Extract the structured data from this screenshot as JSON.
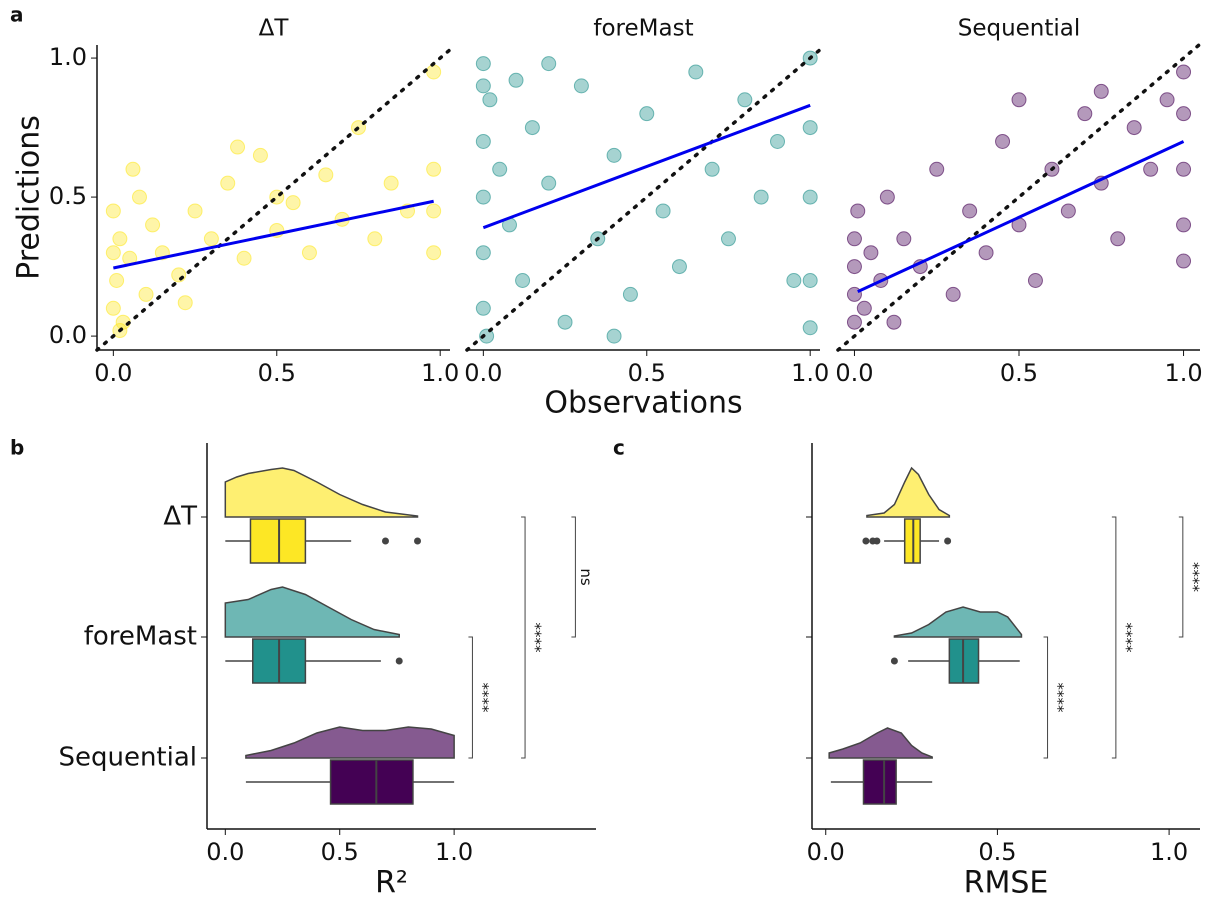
{
  "chart_data": [
    {
      "type": "scatter",
      "panel_label": "a",
      "title": "ΔT",
      "ylabel": "Predictions",
      "color": "#fde725",
      "x": [
        0,
        0,
        0,
        0.01,
        0.02,
        0.03,
        0.05,
        0.08,
        0.1,
        0.12,
        0.15,
        0.2,
        0.25,
        0.3,
        0.35,
        0.4,
        0.45,
        0.5,
        0.55,
        0.6,
        0.65,
        0.7,
        0.75,
        0.8,
        0.85,
        0.9,
        0.98,
        0.98,
        0.98,
        0.98,
        0.06,
        0.22,
        0.5,
        0.38,
        0.02
      ],
      "y": [
        0.3,
        0.1,
        0.45,
        0.2,
        0.35,
        0.05,
        0.28,
        0.5,
        0.15,
        0.4,
        0.3,
        0.22,
        0.45,
        0.35,
        0.55,
        0.28,
        0.65,
        0.38,
        0.48,
        0.3,
        0.58,
        0.42,
        0.75,
        0.35,
        0.55,
        0.45,
        0.3,
        0.6,
        0.95,
        0.45,
        0.6,
        0.12,
        0.5,
        0.68,
        0.02
      ],
      "fit": {
        "x": [
          0,
          0.98
        ],
        "y": [
          0.245,
          0.485
        ]
      },
      "xlim": [
        -0.05,
        1.03
      ],
      "ylim": [
        -0.05,
        1.047
      ],
      "xticks": [
        {
          "value": 0,
          "label": "0.0"
        },
        {
          "value": 0.5,
          "label": "0.5"
        },
        {
          "value": 1,
          "label": "1.0"
        }
      ],
      "yticks": [
        {
          "value": 0,
          "label": "0.0"
        },
        {
          "value": 0.5,
          "label": "0.5"
        },
        {
          "value": 1,
          "label": "1.0"
        }
      ]
    },
    {
      "type": "scatter",
      "title": "foreMast",
      "xlabel": "Observations",
      "color": "#21918c",
      "x": [
        0,
        0,
        0,
        0,
        0,
        0,
        0.01,
        0.02,
        0.05,
        0.08,
        0.1,
        0.12,
        0.15,
        0.2,
        0.25,
        0.3,
        0.35,
        0.4,
        0.45,
        0.5,
        0.55,
        0.6,
        0.65,
        0.7,
        0.75,
        0.8,
        0.85,
        0.9,
        0.95,
        1,
        1,
        1,
        1,
        1,
        0.4,
        0.2
      ],
      "y": [
        0.98,
        0.9,
        0.7,
        0.5,
        0.3,
        0.1,
        0,
        0.85,
        0.6,
        0.4,
        0.92,
        0.2,
        0.75,
        0.55,
        0.05,
        0.9,
        0.35,
        0.65,
        0.15,
        0.8,
        0.45,
        0.25,
        0.95,
        0.6,
        0.35,
        0.85,
        0.5,
        0.7,
        0.2,
        1,
        0.75,
        0.5,
        0.2,
        0.03,
        0,
        0.98
      ],
      "fit": {
        "x": [
          0,
          1
        ],
        "y": [
          0.39,
          0.83
        ]
      },
      "xlim": [
        -0.05,
        1.03
      ],
      "ylim": [
        -0.05,
        1.047
      ],
      "xticks": [
        {
          "value": 0,
          "label": "0.0"
        },
        {
          "value": 0.5,
          "label": "0.5"
        },
        {
          "value": 1,
          "label": "1.0"
        }
      ]
    },
    {
      "type": "scatter",
      "title": "Sequential",
      "color": "#440154",
      "x": [
        0,
        0,
        0,
        0,
        0.01,
        0.03,
        0.05,
        0.08,
        0.1,
        0.12,
        0.15,
        0.2,
        0.25,
        0.3,
        0.35,
        0.4,
        0.45,
        0.5,
        0.55,
        0.6,
        0.65,
        0.7,
        0.75,
        0.8,
        0.85,
        0.9,
        0.95,
        1,
        1,
        1,
        1,
        1,
        0.5,
        0.75
      ],
      "y": [
        0.05,
        0.15,
        0.25,
        0.35,
        0.45,
        0.1,
        0.3,
        0.2,
        0.5,
        0.05,
        0.35,
        0.25,
        0.6,
        0.15,
        0.45,
        0.3,
        0.7,
        0.4,
        0.2,
        0.6,
        0.45,
        0.8,
        0.55,
        0.35,
        0.75,
        0.6,
        0.85,
        0.95,
        0.8,
        0.6,
        0.4,
        0.27,
        0.85,
        0.88
      ],
      "fit": {
        "x": [
          0.01,
          1
        ],
        "y": [
          0.16,
          0.7
        ]
      },
      "xlim": [
        -0.05,
        1.05
      ],
      "ylim": [
        -0.05,
        1.047
      ],
      "xticks": [
        {
          "value": 0,
          "label": "0.0"
        },
        {
          "value": 0.5,
          "label": "0.5"
        },
        {
          "value": 1,
          "label": "1.0"
        }
      ]
    },
    {
      "type": "raincloud",
      "panel_label": "b",
      "xlabel": "R²",
      "categories": [
        "ΔT",
        "foreMast",
        "Sequential"
      ],
      "xlim": [
        -0.08,
        1.62
      ],
      "xticks": [
        {
          "value": 0,
          "label": "0.0"
        },
        {
          "value": 0.5,
          "label": "0.5"
        },
        {
          "value": 1,
          "label": "1.0"
        }
      ],
      "series": [
        {
          "color": "#fde725",
          "whisker": [
            0,
            0.55
          ],
          "q1": 0.11,
          "median": 0.235,
          "q3": 0.35,
          "outliers": [
            0.7,
            0.84
          ],
          "density_x": [
            0,
            0.05,
            0.1,
            0.2,
            0.25,
            0.3,
            0.4,
            0.5,
            0.6,
            0.7,
            0.84
          ],
          "density": [
            0.7,
            0.8,
            0.87,
            0.95,
            0.98,
            0.93,
            0.7,
            0.45,
            0.25,
            0.1,
            0.02
          ]
        },
        {
          "color": "#21918c",
          "whisker": [
            0,
            0.68
          ],
          "q1": 0.12,
          "median": 0.235,
          "q3": 0.35,
          "outliers": [
            0.76
          ],
          "density_x": [
            0,
            0.1,
            0.2,
            0.25,
            0.35,
            0.45,
            0.55,
            0.65,
            0.76
          ],
          "density": [
            0.68,
            0.75,
            0.95,
            1,
            0.85,
            0.6,
            0.35,
            0.15,
            0.05
          ]
        },
        {
          "color": "#440154",
          "whisker": [
            0.09,
            1
          ],
          "q1": 0.46,
          "median": 0.66,
          "q3": 0.82,
          "outliers": [],
          "density_x": [
            0.09,
            0.2,
            0.3,
            0.4,
            0.5,
            0.6,
            0.7,
            0.8,
            0.9,
            1
          ],
          "density": [
            0.05,
            0.15,
            0.3,
            0.5,
            0.62,
            0.55,
            0.55,
            0.62,
            0.58,
            0.45
          ]
        }
      ],
      "brackets": [
        {
          "from": 0,
          "to": 1,
          "x": 1.53,
          "label": "ns"
        },
        {
          "from": 0,
          "to": 2,
          "x": 1.31,
          "label": "****"
        },
        {
          "from": 1,
          "to": 2,
          "x": 1.08,
          "label": "****"
        }
      ]
    },
    {
      "type": "raincloud",
      "panel_label": "c",
      "xlabel": "RMSE",
      "xlim": [
        -0.04,
        1.09
      ],
      "xticks": [
        {
          "value": 0,
          "label": "0.0"
        },
        {
          "value": 0.5,
          "label": "0.5"
        },
        {
          "value": 1,
          "label": "1.0"
        }
      ],
      "series": [
        {
          "color": "#fde725",
          "whisker": [
            0.17,
            0.33
          ],
          "q1": 0.23,
          "median": 0.255,
          "q3": 0.275,
          "outliers": [
            0.117,
            0.137,
            0.149,
            0.355
          ],
          "density_x": [
            0.12,
            0.17,
            0.2,
            0.23,
            0.25,
            0.27,
            0.3,
            0.33,
            0.36
          ],
          "density": [
            0.03,
            0.08,
            0.25,
            0.7,
            0.98,
            0.85,
            0.45,
            0.15,
            0.03
          ]
        },
        {
          "color": "#21918c",
          "whisker": [
            0.24,
            0.565
          ],
          "q1": 0.36,
          "median": 0.4,
          "q3": 0.445,
          "outliers": [
            0.2
          ],
          "density_x": [
            0.2,
            0.25,
            0.3,
            0.35,
            0.4,
            0.45,
            0.5,
            0.53,
            0.57
          ],
          "density": [
            0.02,
            0.08,
            0.25,
            0.5,
            0.6,
            0.5,
            0.5,
            0.4,
            0.05
          ]
        },
        {
          "color": "#440154",
          "whisker": [
            0.015,
            0.31
          ],
          "q1": 0.11,
          "median": 0.17,
          "q3": 0.205,
          "outliers": [],
          "density_x": [
            0.01,
            0.05,
            0.1,
            0.15,
            0.18,
            0.22,
            0.25,
            0.28,
            0.31
          ],
          "density": [
            0.1,
            0.18,
            0.3,
            0.5,
            0.6,
            0.5,
            0.25,
            0.1,
            0.02
          ]
        }
      ],
      "brackets": [
        {
          "from": 0,
          "to": 1,
          "x": 1.04,
          "label": "****"
        },
        {
          "from": 0,
          "to": 2,
          "x": 0.845,
          "label": "****"
        },
        {
          "from": 1,
          "to": 2,
          "x": 0.646,
          "label": "****"
        }
      ]
    }
  ]
}
